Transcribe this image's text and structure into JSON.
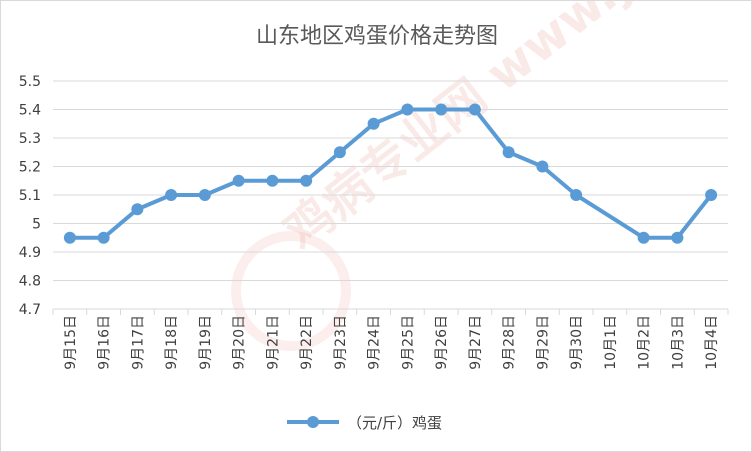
{
  "chart_data": {
    "type": "line",
    "title": "山东地区鸡蛋价格走势图",
    "xlabel": "",
    "ylabel": "",
    "categories": [
      "9月15日",
      "9月16日",
      "9月17日",
      "9月18日",
      "9月19日",
      "9月20日",
      "9月21日",
      "9月22日",
      "9月23日",
      "9月24日",
      "9月25日",
      "9月26日",
      "9月27日",
      "9月28日",
      "9月29日",
      "9月30日",
      "10月1日",
      "10月2日",
      "10月3日",
      "10月4日"
    ],
    "series": [
      {
        "name": "（元/斤）鸡蛋",
        "values": [
          4.95,
          4.95,
          5.05,
          5.1,
          5.1,
          5.15,
          5.15,
          5.15,
          5.25,
          5.35,
          5.4,
          5.4,
          5.4,
          5.25,
          5.2,
          5.1,
          null,
          4.95,
          4.95,
          5.1
        ]
      }
    ],
    "ylim": [
      4.7,
      5.5
    ],
    "yticks": [
      "5.5",
      "5.4",
      "5.3",
      "5.2",
      "5.1",
      "5",
      "4.9",
      "4.8",
      "4.7"
    ],
    "grid": true,
    "legend_position": "bottom",
    "line_color": "#5b9bd5",
    "watermark": "鸡病专业网 www.jbzyw.com"
  }
}
